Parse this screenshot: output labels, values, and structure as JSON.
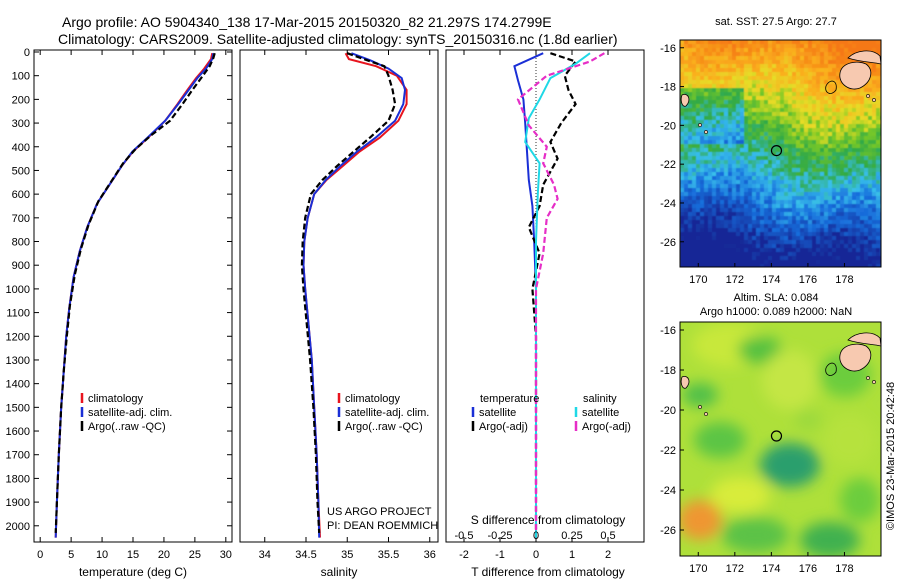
{
  "header": {
    "title_line1": "Argo profile: AO 5904340_138 17-Mar-2015 20150320_82 21.297S 174.2799E",
    "title_line2": "Climatology: CARS2009. Satellite-adjusted climatology: synTS_20150316.nc (1.8d earlier)"
  },
  "colors": {
    "climatology": "#e8141e",
    "satellite": "#1a2fd6",
    "argo": "#000000",
    "salinity_satellite": "#1fd8e6",
    "salinity_argo": "#e62ec7"
  },
  "chart_data": [
    {
      "type": "line",
      "name": "temperature-profile",
      "xlabel": "temperature (deg C)",
      "xlim": [
        -1,
        31
      ],
      "ylim": [
        2060,
        0
      ],
      "xticks": [
        0,
        5,
        10,
        15,
        20,
        25,
        30
      ],
      "yticks": [
        0,
        100,
        200,
        300,
        400,
        500,
        600,
        700,
        800,
        900,
        1000,
        1100,
        1200,
        1300,
        1400,
        1500,
        1600,
        1700,
        1800,
        1900,
        2000
      ],
      "legend": [
        "climatology",
        "satellite-adj. clim.",
        "Argo(..raw -QC)"
      ],
      "legend_position": "lower-left",
      "series": [
        {
          "name": "climatology",
          "style": "solid",
          "color": "#e8141e",
          "points": [
            [
              27.8,
              5
            ],
            [
              27.6,
              30
            ],
            [
              26.5,
              70
            ],
            [
              25.2,
              110
            ],
            [
              23.8,
              160
            ],
            [
              22.2,
              220
            ],
            [
              20.2,
              290
            ],
            [
              17.5,
              360
            ],
            [
              15.0,
              420
            ],
            [
              13.2,
              480
            ],
            [
              11.2,
              560
            ],
            [
              9.2,
              640
            ],
            [
              7.6,
              740
            ],
            [
              6.4,
              840
            ],
            [
              5.4,
              950
            ],
            [
              4.7,
              1080
            ],
            [
              4.2,
              1200
            ],
            [
              3.8,
              1350
            ],
            [
              3.4,
              1500
            ],
            [
              3.0,
              1700
            ],
            [
              2.7,
              1900
            ],
            [
              2.5,
              2050
            ]
          ]
        },
        {
          "name": "satellite-adj. clim.",
          "style": "solid",
          "color": "#1a2fd6",
          "points": [
            [
              28.0,
              5
            ],
            [
              27.8,
              30
            ],
            [
              26.8,
              70
            ],
            [
              25.4,
              110
            ],
            [
              24.0,
              160
            ],
            [
              22.3,
              220
            ],
            [
              20.2,
              290
            ],
            [
              17.4,
              360
            ],
            [
              14.9,
              420
            ],
            [
              13.2,
              480
            ],
            [
              11.2,
              560
            ],
            [
              9.2,
              640
            ],
            [
              7.6,
              740
            ],
            [
              6.4,
              840
            ],
            [
              5.4,
              950
            ],
            [
              4.7,
              1080
            ],
            [
              4.2,
              1200
            ],
            [
              3.8,
              1350
            ],
            [
              3.4,
              1500
            ],
            [
              3.0,
              1700
            ],
            [
              2.7,
              1900
            ],
            [
              2.5,
              2050
            ]
          ]
        },
        {
          "name": "Argo(..raw -QC)",
          "style": "dashed",
          "color": "#000000",
          "points": [
            [
              28.2,
              5
            ],
            [
              28.0,
              25
            ],
            [
              27.4,
              60
            ],
            [
              26.0,
              110
            ],
            [
              24.6,
              160
            ],
            [
              23.0,
              220
            ],
            [
              21.0,
              290
            ],
            [
              18.0,
              350
            ],
            [
              15.4,
              410
            ],
            [
              13.4,
              470
            ],
            [
              11.4,
              550
            ],
            [
              9.4,
              630
            ],
            [
              7.8,
              730
            ],
            [
              6.6,
              830
            ],
            [
              5.6,
              940
            ],
            [
              4.8,
              1070
            ],
            [
              4.3,
              1200
            ],
            [
              3.8,
              1350
            ],
            [
              3.4,
              1500
            ],
            [
              3.0,
              1700
            ],
            [
              2.7,
              1900
            ],
            [
              2.5,
              2030
            ]
          ]
        }
      ]
    },
    {
      "type": "line",
      "name": "salinity-profile",
      "xlabel": "salinity",
      "xlim": [
        33.7,
        36.1
      ],
      "ylim": [
        2060,
        0
      ],
      "xticks": [
        34,
        34.5,
        35,
        35.5,
        36
      ],
      "legend": [
        "climatology",
        "satellite-adj. clim.",
        "Argo(..raw -QC)"
      ],
      "legend_position": "lower-right",
      "annotation": [
        "US ARGO PROJECT",
        "PI: DEAN ROEMMICH"
      ],
      "series": [
        {
          "name": "climatology",
          "style": "solid",
          "color": "#e8141e",
          "points": [
            [
              34.98,
              5
            ],
            [
              35.02,
              30
            ],
            [
              35.35,
              60
            ],
            [
              35.6,
              100
            ],
            [
              35.72,
              160
            ],
            [
              35.72,
              220
            ],
            [
              35.62,
              290
            ],
            [
              35.4,
              360
            ],
            [
              35.15,
              420
            ],
            [
              34.95,
              480
            ],
            [
              34.75,
              540
            ],
            [
              34.6,
              600
            ],
            [
              34.52,
              700
            ],
            [
              34.48,
              800
            ],
            [
              34.47,
              900
            ],
            [
              34.49,
              1000
            ],
            [
              34.53,
              1150
            ],
            [
              34.57,
              1300
            ],
            [
              34.6,
              1500
            ],
            [
              34.63,
              1700
            ],
            [
              34.65,
              1900
            ],
            [
              34.67,
              2050
            ]
          ]
        },
        {
          "name": "satellite-adj. clim.",
          "style": "solid",
          "color": "#1a2fd6",
          "points": [
            [
              35.05,
              5
            ],
            [
              35.28,
              35
            ],
            [
              35.5,
              70
            ],
            [
              35.66,
              110
            ],
            [
              35.7,
              160
            ],
            [
              35.68,
              220
            ],
            [
              35.58,
              290
            ],
            [
              35.35,
              360
            ],
            [
              35.12,
              420
            ],
            [
              34.92,
              480
            ],
            [
              34.74,
              540
            ],
            [
              34.6,
              600
            ],
            [
              34.52,
              700
            ],
            [
              34.48,
              800
            ],
            [
              34.47,
              900
            ],
            [
              34.49,
              1000
            ],
            [
              34.53,
              1150
            ],
            [
              34.57,
              1300
            ],
            [
              34.6,
              1500
            ],
            [
              34.63,
              1700
            ],
            [
              34.65,
              1900
            ],
            [
              34.66,
              2050
            ]
          ]
        },
        {
          "name": "Argo(..raw -QC)",
          "style": "dashed",
          "color": "#000000",
          "points": [
            [
              35.0,
              5
            ],
            [
              35.2,
              30
            ],
            [
              35.45,
              60
            ],
            [
              35.5,
              100
            ],
            [
              35.55,
              160
            ],
            [
              35.58,
              220
            ],
            [
              35.5,
              290
            ],
            [
              35.28,
              360
            ],
            [
              35.08,
              420
            ],
            [
              34.88,
              480
            ],
            [
              34.7,
              540
            ],
            [
              34.56,
              600
            ],
            [
              34.49,
              700
            ],
            [
              34.46,
              800
            ],
            [
              34.45,
              900
            ],
            [
              34.47,
              1000
            ],
            [
              34.51,
              1150
            ],
            [
              34.55,
              1300
            ],
            [
              34.59,
              1500
            ],
            [
              34.62,
              1700
            ],
            [
              34.64,
              1900
            ],
            [
              34.66,
              2030
            ]
          ]
        }
      ]
    },
    {
      "type": "line",
      "name": "difference-profile",
      "xlabel": "T difference from climatology",
      "xlabel_top": "S difference from climatology",
      "xlim": [
        -2.5,
        3
      ],
      "ylim": [
        2060,
        0
      ],
      "xticks": [
        -2,
        -1,
        0,
        1,
        2
      ],
      "xticks_salinity": [
        {
          "label": "-0.5",
          "pos": -2
        },
        {
          "label": "-0.25",
          "pos": -1
        },
        {
          "label": "0",
          "pos": 0
        },
        {
          "label": "0.25",
          "pos": 1
        },
        {
          "label": "0.5",
          "pos": 2
        }
      ],
      "legend_groups": [
        {
          "heading": "temperature",
          "items": [
            "satellite",
            "Argo(-adj)"
          ]
        },
        {
          "heading": "salinity",
          "items": [
            "satellite",
            "Argo(-adj)"
          ]
        }
      ],
      "series": [
        {
          "name": "temperature satellite",
          "style": "solid",
          "color": "#1a2fd6",
          "points": [
            [
              0.2,
              5
            ],
            [
              -0.6,
              60
            ],
            [
              -0.5,
              120
            ],
            [
              -0.35,
              200
            ],
            [
              -0.3,
              300
            ],
            [
              -0.25,
              420
            ],
            [
              -0.2,
              540
            ],
            [
              -0.1,
              650
            ],
            [
              -0.05,
              800
            ],
            [
              0,
              1000
            ],
            [
              0,
              1500
            ],
            [
              0,
              2050
            ]
          ]
        },
        {
          "name": "temperature Argo(-adj)",
          "style": "dashed",
          "color": "#000000",
          "points": [
            [
              0.4,
              5
            ],
            [
              1.1,
              40
            ],
            [
              0.8,
              100
            ],
            [
              0.9,
              160
            ],
            [
              1.1,
              220
            ],
            [
              0.7,
              300
            ],
            [
              0.4,
              380
            ],
            [
              0.6,
              450
            ],
            [
              0.2,
              560
            ],
            [
              0.1,
              650
            ],
            [
              -0.2,
              740
            ],
            [
              0.1,
              850
            ],
            [
              -0.1,
              1000
            ],
            [
              0,
              1200
            ],
            [
              0,
              1500
            ],
            [
              0,
              2030
            ]
          ]
        },
        {
          "name": "salinity satellite",
          "style": "solid",
          "color": "#1fd8e6",
          "points": [
            [
              1.5,
              5
            ],
            [
              1.1,
              50
            ],
            [
              0.4,
              110
            ],
            [
              0.1,
              200
            ],
            [
              -0.2,
              280
            ],
            [
              -0.3,
              380
            ],
            [
              0.1,
              470
            ],
            [
              0.05,
              600
            ],
            [
              0,
              800
            ],
            [
              0,
              1200
            ],
            [
              0,
              2050
            ]
          ]
        },
        {
          "name": "salinity Argo(-adj)",
          "style": "dashed",
          "color": "#e62ec7",
          "points": [
            [
              1.9,
              5
            ],
            [
              1.5,
              40
            ],
            [
              0.3,
              100
            ],
            [
              -0.5,
              200
            ],
            [
              -0.2,
              310
            ],
            [
              0.3,
              400
            ],
            [
              0.2,
              470
            ],
            [
              0.5,
              560
            ],
            [
              0.6,
              620
            ],
            [
              0.3,
              700
            ],
            [
              0.2,
              850
            ],
            [
              0,
              1000
            ],
            [
              0,
              1200
            ],
            [
              0,
              2030
            ]
          ]
        }
      ]
    },
    {
      "type": "heatmap",
      "name": "sst-map",
      "title": "sat. SST: 27.5 Argo: 27.7",
      "xlim": [
        169,
        180
      ],
      "ylim": [
        -27.3,
        -15.6
      ],
      "xticks": [
        170,
        172,
        174,
        176,
        178
      ],
      "yticks": [
        -16,
        -18,
        -20,
        -22,
        -24,
        -26
      ],
      "marker": {
        "lon": 174.28,
        "lat": -21.3
      }
    },
    {
      "type": "heatmap",
      "name": "sla-map",
      "title": "Altim. SLA: 0.084",
      "subtitle": "Argo h1000: 0.089 h2000: NaN",
      "xlim": [
        169,
        180
      ],
      "ylim": [
        -27.3,
        -15.6
      ],
      "xticks": [
        170,
        172,
        174,
        176,
        178
      ],
      "yticks": [
        -16,
        -18,
        -20,
        -22,
        -24,
        -26
      ],
      "marker": {
        "lon": 174.28,
        "lat": -21.3
      }
    }
  ],
  "footer": {
    "credit": "©IMOS 23-Mar-2015 20:42:48"
  }
}
